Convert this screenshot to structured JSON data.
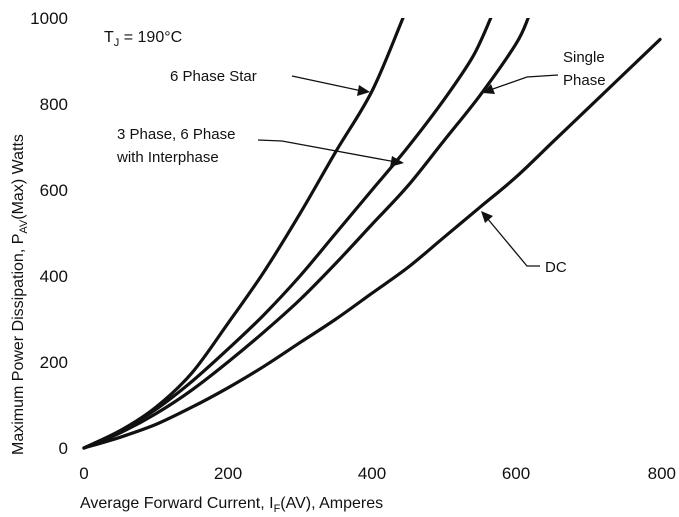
{
  "chart_data": {
    "type": "line",
    "condition": {
      "prefix": "T",
      "sub": "J",
      "value": " = 190°C"
    },
    "xlabel": {
      "before": "Average Forward Current, I",
      "sub": "F",
      "after": "(AV), Amperes"
    },
    "ylabel": {
      "before": "Maximum Power Dissipation, P",
      "sub": "AV",
      "after": "(Max) Watts"
    },
    "xlim": [
      0,
      800
    ],
    "ylim": [
      0,
      1000
    ],
    "xticks": [
      0,
      200,
      400,
      600,
      800
    ],
    "yticks": [
      0,
      200,
      400,
      600,
      800,
      1000
    ],
    "grid": false,
    "series": [
      {
        "name": "6 Phase Star",
        "x": [
          0,
          50,
          100,
          150,
          200,
          250,
          300,
          350,
          400,
          443
        ],
        "y": [
          0,
          40,
          95,
          175,
          290,
          410,
          545,
          690,
          830,
          1000
        ]
      },
      {
        "name": "3 Phase, 6 Phase with Interphase",
        "x": [
          0,
          50,
          100,
          150,
          200,
          250,
          300,
          350,
          400,
          450,
          500,
          540,
          565
        ],
        "y": [
          0,
          40,
          90,
          155,
          230,
          310,
          400,
          500,
          600,
          700,
          810,
          910,
          1000
        ]
      },
      {
        "name": "Single Phase",
        "x": [
          0,
          50,
          100,
          150,
          200,
          250,
          300,
          350,
          400,
          450,
          500,
          550,
          600,
          617
        ],
        "y": [
          0,
          35,
          80,
          135,
          200,
          270,
          345,
          430,
          520,
          610,
          715,
          820,
          940,
          1000
        ]
      },
      {
        "name": "DC",
        "x": [
          0,
          50,
          100,
          150,
          200,
          250,
          300,
          350,
          400,
          450,
          500,
          550,
          600,
          650,
          700,
          750,
          800
        ],
        "y": [
          0,
          25,
          55,
          95,
          140,
          190,
          245,
          300,
          360,
          420,
          490,
          560,
          630,
          710,
          790,
          870,
          950
        ]
      }
    ],
    "annotations": [
      {
        "lines": [
          "6 Phase Star"
        ]
      },
      {
        "lines": [
          "3 Phase, 6 Phase",
          "with Interphase"
        ]
      },
      {
        "lines": [
          "Single",
          "Phase"
        ]
      },
      {
        "lines": [
          "DC"
        ]
      }
    ]
  }
}
